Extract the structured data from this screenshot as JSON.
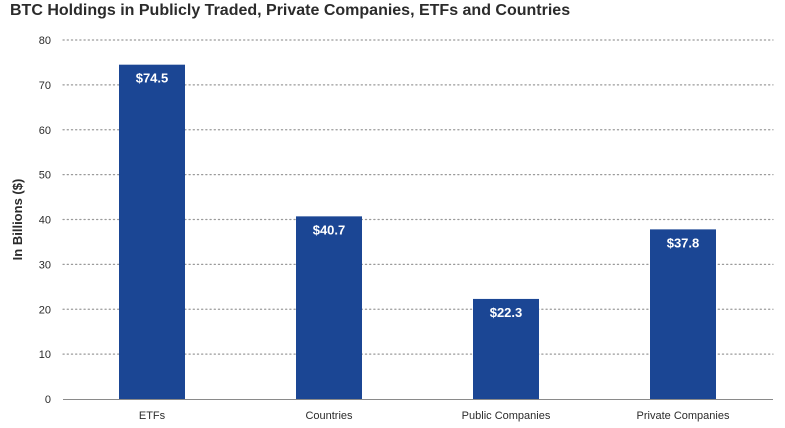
{
  "chart_data": {
    "type": "bar",
    "title": "BTC Holdings in Publicly Traded, Private Companies, ETFs and Countries",
    "xlabel": "",
    "ylabel": "In Billions ($)",
    "categories": [
      "ETFs",
      "Countries",
      "Public Companies",
      "Private Companies"
    ],
    "values": [
      74.5,
      40.7,
      22.3,
      37.8
    ],
    "data_labels": [
      "$74.5",
      "$40.7",
      "$22.3",
      "$37.8"
    ],
    "ylim": [
      0,
      80
    ],
    "yticks": [
      0,
      10,
      20,
      30,
      40,
      50,
      60,
      70,
      80
    ],
    "grid": true,
    "legend": "none",
    "bar_color": "#1b4694",
    "label_color": "#ffffff",
    "grid_color": "#9a9a9a",
    "text_color": "#2b2b2b"
  }
}
